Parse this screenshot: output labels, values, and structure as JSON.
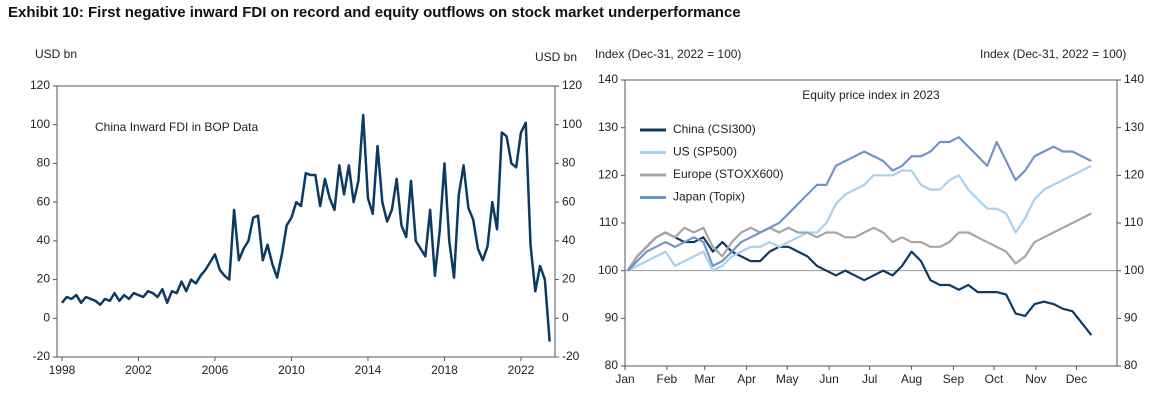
{
  "title": "Exhibit 10: First negative inward FDI on record and equity outflows on stock market underperformance",
  "chart_data": [
    {
      "type": "line",
      "ylabel": "USD bn",
      "y2label": "USD bn",
      "annotation": "China Inward FDI in BOP Data",
      "color": "#0d3a63",
      "x": [
        1998,
        1998.25,
        1998.5,
        1998.75,
        1999,
        1999.25,
        1999.5,
        1999.75,
        2000,
        2000.25,
        2000.5,
        2000.75,
        2001,
        2001.25,
        2001.5,
        2001.75,
        2002,
        2002.25,
        2002.5,
        2002.75,
        2003,
        2003.25,
        2003.5,
        2003.75,
        2004,
        2004.25,
        2004.5,
        2004.75,
        2005,
        2005.25,
        2005.5,
        2005.75,
        2006,
        2006.25,
        2006.5,
        2006.75,
        2007,
        2007.25,
        2007.5,
        2007.75,
        2008,
        2008.25,
        2008.5,
        2008.75,
        2009,
        2009.25,
        2009.5,
        2009.75,
        2010,
        2010.25,
        2010.5,
        2010.75,
        2011,
        2011.25,
        2011.5,
        2011.75,
        2012,
        2012.25,
        2012.5,
        2012.75,
        2013,
        2013.25,
        2013.5,
        2013.75,
        2014,
        2014.25,
        2014.5,
        2014.75,
        2015,
        2015.25,
        2015.5,
        2015.75,
        2016,
        2016.25,
        2016.5,
        2016.75,
        2017,
        2017.25,
        2017.5,
        2017.75,
        2018,
        2018.25,
        2018.5,
        2018.75,
        2019,
        2019.25,
        2019.5,
        2019.75,
        2020,
        2020.25,
        2020.5,
        2020.75,
        2021,
        2021.25,
        2021.5,
        2021.75,
        2022,
        2022.25,
        2022.5,
        2022.75,
        2023,
        2023.25,
        2023.5
      ],
      "values": [
        8,
        11,
        10,
        12,
        8,
        11,
        10,
        9,
        7,
        10,
        9,
        13,
        9,
        12,
        10,
        13,
        12,
        11,
        14,
        13,
        11,
        15,
        8,
        14,
        13,
        19,
        14,
        20,
        18,
        22,
        25,
        29,
        33,
        25,
        22,
        20,
        56,
        30,
        36,
        40,
        52,
        53,
        30,
        38,
        28,
        21,
        33,
        48,
        52,
        60,
        58,
        75,
        74,
        74,
        58,
        72,
        62,
        56,
        79,
        64,
        79,
        60,
        71,
        105,
        62,
        54,
        89,
        60,
        50,
        56,
        72,
        48,
        42,
        71,
        40,
        36,
        32,
        56,
        22,
        45,
        80,
        40,
        21,
        64,
        79,
        57,
        51,
        36,
        30,
        37,
        60,
        46,
        96,
        94,
        80,
        78,
        96,
        101,
        38,
        14,
        27,
        20,
        -12
      ],
      "xlim": [
        1997.74,
        2023.78
      ],
      "xticks": [
        1998,
        2002,
        2006,
        2010,
        2014,
        2018,
        2022
      ],
      "ylim": [
        -20,
        120
      ],
      "yticks": [
        -20,
        0,
        20,
        40,
        60,
        80,
        100,
        120
      ],
      "y2lim": [
        -20,
        120
      ],
      "y2ticks": [
        -20,
        0,
        20,
        40,
        60,
        80,
        100,
        120
      ]
    },
    {
      "type": "line",
      "ylabel": "Index (Dec-31, 2022 = 100)",
      "y2label": "Index (Dec-31, 2022 = 100)",
      "annotation": "Equity price index in 2023",
      "reference_line": 100,
      "x": [
        2,
        9,
        16,
        23,
        30,
        37,
        44,
        51,
        58,
        65,
        72,
        79,
        86,
        93,
        100,
        107,
        114,
        121,
        128,
        135,
        142,
        149,
        156,
        163,
        170,
        177,
        184,
        191,
        198,
        205,
        212,
        219,
        226,
        233,
        240,
        247,
        254,
        261,
        268,
        275,
        282,
        289,
        296,
        303,
        310,
        317,
        324,
        331,
        338,
        345
      ],
      "series": [
        {
          "name": "China (CSI300)",
          "color": "#0d3a63",
          "values": [
            100,
            103,
            105,
            107,
            108,
            107,
            106,
            106,
            107,
            104,
            106,
            104,
            103,
            102,
            102,
            104,
            105,
            105,
            104,
            103,
            101,
            100,
            99,
            100,
            99,
            98,
            99,
            100,
            99,
            101,
            104,
            102,
            98,
            97,
            97,
            96,
            97,
            95.5,
            95.5,
            95.5,
            95,
            91,
            90.5,
            93,
            93.5,
            93,
            92,
            91.5,
            89,
            86.5
          ]
        },
        {
          "name": "US (SP500)",
          "color": "#a8d1ee",
          "values": [
            100,
            101,
            102,
            103,
            104,
            101,
            102,
            103,
            104,
            100,
            101,
            103,
            104,
            105,
            105,
            106,
            105,
            106,
            107,
            108,
            108,
            110,
            114,
            116,
            117,
            118,
            120,
            120,
            120,
            121,
            121,
            118,
            117,
            117,
            119,
            120,
            117,
            115,
            113,
            113,
            112,
            108,
            111,
            115,
            117,
            118,
            119,
            120,
            121,
            122
          ]
        },
        {
          "name": "Europe (STOXX600)",
          "color": "#a6a6a6",
          "values": [
            100,
            103,
            105,
            107,
            108,
            107,
            109,
            108,
            109,
            105,
            103,
            106,
            108,
            109,
            108,
            109,
            108,
            109,
            108,
            108,
            107,
            108,
            108,
            107,
            107,
            108,
            109,
            108,
            106,
            107,
            106,
            106,
            105,
            105,
            106,
            108,
            108,
            107,
            106,
            105,
            104,
            101.5,
            103,
            106,
            107,
            108,
            109,
            110,
            111,
            112
          ]
        },
        {
          "name": "Japan (Topix)",
          "color": "#7395c6",
          "values": [
            100,
            102,
            104,
            105,
            106,
            105,
            106,
            107,
            106,
            101,
            102,
            104,
            106,
            107,
            108,
            109,
            110,
            112,
            114,
            116,
            118,
            118,
            122,
            123,
            124,
            125,
            124,
            123,
            121,
            122,
            124,
            124,
            125,
            127,
            127,
            128,
            126,
            124,
            122,
            127,
            123,
            119,
            121,
            124,
            125,
            126,
            125,
            125,
            124,
            123
          ]
        }
      ],
      "xlim": [
        0,
        364
      ],
      "xticks": [
        {
          "value": 0,
          "label": "Jan"
        },
        {
          "value": 31,
          "label": "Feb"
        },
        {
          "value": 59,
          "label": "Mar"
        },
        {
          "value": 90,
          "label": "Apr"
        },
        {
          "value": 120,
          "label": "May"
        },
        {
          "value": 151,
          "label": "Jun"
        },
        {
          "value": 181,
          "label": "Jul"
        },
        {
          "value": 212,
          "label": "Aug"
        },
        {
          "value": 243,
          "label": "Sep"
        },
        {
          "value": 273,
          "label": "Oct"
        },
        {
          "value": 304,
          "label": "Nov"
        },
        {
          "value": 334,
          "label": "Dec"
        }
      ],
      "ylim": [
        80,
        140
      ],
      "yticks": [
        80,
        90,
        100,
        110,
        120,
        130,
        140
      ],
      "y2lim": [
        80,
        140
      ],
      "y2ticks": [
        80,
        90,
        100,
        110,
        120,
        130,
        140
      ]
    }
  ]
}
